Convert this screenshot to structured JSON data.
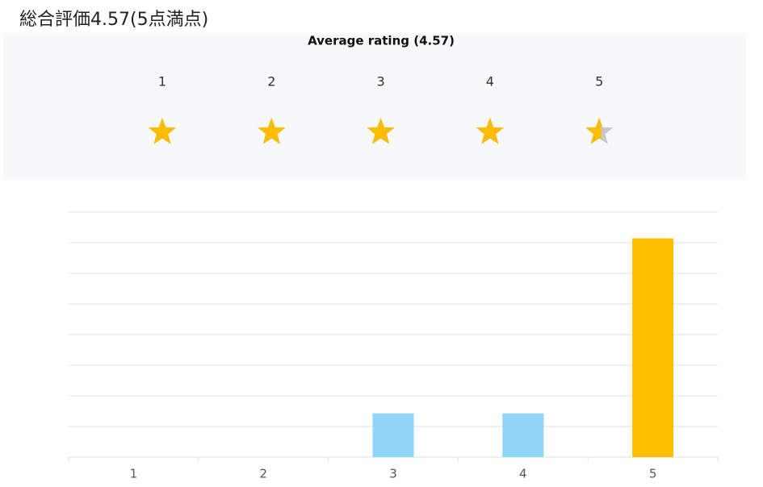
{
  "title": "総合評価4.57(5点満点)",
  "rating_panel": {
    "title": "Average rating (4.57)",
    "rating": 4.57,
    "stars": [
      1,
      2,
      3,
      4,
      5
    ],
    "fill_color": "#fbbc04",
    "empty_color": "#c8c8c8"
  },
  "chart_data": {
    "type": "bar",
    "categories": [
      "1",
      "2",
      "3",
      "4",
      "5"
    ],
    "values": [
      0,
      0,
      1,
      1,
      5
    ],
    "colors": [
      "#90d5f9",
      "#90d5f9",
      "#90d5f9",
      "#90d5f9",
      "#ffbf00"
    ],
    "ylim": [
      0,
      5.6
    ],
    "yticks": [
      0,
      0.7,
      1.4,
      2.1,
      2.8,
      3.5,
      4.2,
      4.9,
      5.6
    ],
    "grid": true
  }
}
